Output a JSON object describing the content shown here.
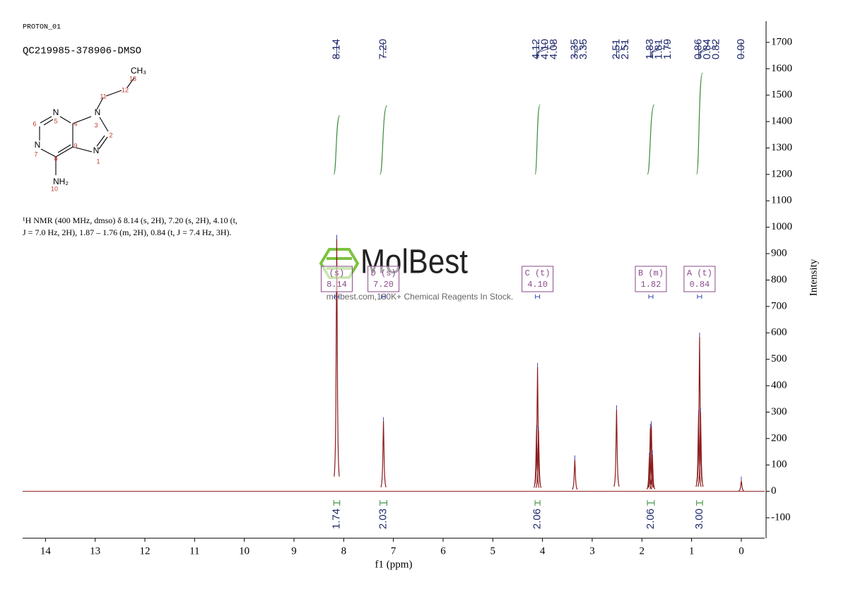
{
  "header": {
    "experiment": "PROTON_01",
    "sample": "QC219985-378906-DMSO"
  },
  "structure": {
    "atoms": [
      "N",
      "N",
      "N",
      "N",
      "NH₂",
      "CH₃"
    ],
    "numbers": [
      5,
      4,
      3,
      2,
      6,
      7,
      9,
      1,
      8,
      10,
      11,
      12,
      13
    ]
  },
  "description": [
    "¹H NMR (400 MHz, dmso) δ 8.14 (s, 2H), 7.20 (s, 2H), 4.10 (t,",
    "J = 7.0 Hz, 2H), 1.87 – 1.76 (m, 2H), 0.84 (t, J = 7.4 Hz, 3H)."
  ],
  "watermark": {
    "brand": "MolBest",
    "tagline": "molbest.com,180K+ Chemical Reagents In Stock."
  },
  "chart_data": {
    "type": "nmr",
    "xlabel": "f1 (ppm)",
    "ylabel": "Intensity",
    "xlim": [
      14.46,
      -0.47
    ],
    "xticks": [
      14,
      13,
      12,
      11,
      10,
      9,
      8,
      7,
      6,
      5,
      4,
      3,
      2,
      1,
      0
    ],
    "ylim": [
      -172,
      1780
    ],
    "yticks": [
      -100,
      0,
      100,
      200,
      300,
      400,
      500,
      600,
      700,
      800,
      900,
      1000,
      1100,
      1200,
      1300,
      1400,
      1500,
      1600,
      1700
    ],
    "color": "#8b1a1a",
    "peaks": [
      {
        "shift": 8.14,
        "height": 955
      },
      {
        "shift": 7.2,
        "height": 265
      },
      {
        "shift": 4.12,
        "height": 235
      },
      {
        "shift": 4.1,
        "height": 470
      },
      {
        "shift": 4.08,
        "height": 230
      },
      {
        "shift": 3.35,
        "height": 120
      },
      {
        "shift": 2.51,
        "height": 310
      },
      {
        "shift": 1.85,
        "height": 130
      },
      {
        "shift": 1.83,
        "height": 240
      },
      {
        "shift": 1.81,
        "height": 250
      },
      {
        "shift": 1.79,
        "height": 140
      },
      {
        "shift": 0.86,
        "height": 290
      },
      {
        "shift": 0.84,
        "height": 585
      },
      {
        "shift": 0.82,
        "height": 300
      },
      {
        "shift": 0.0,
        "height": 40
      }
    ],
    "peak_labels": [
      8.14,
      {
        "value": 7.2,
        "label": "7.20"
      },
      4.12,
      {
        "value": 4.1,
        "label": "4.10"
      },
      4.08,
      3.35,
      3.35,
      2.51,
      2.51,
      1.83,
      1.81,
      1.79,
      0.86,
      0.84,
      0.82,
      {
        "value": 0,
        "label": "0.00"
      }
    ],
    "label_color": "#1f2a6b",
    "integral_color": "#3c8c3c",
    "integrals": [
      {
        "from": 8.2,
        "to": 8.08,
        "value": 1.74
      },
      {
        "from": 7.27,
        "to": 7.13,
        "value": 2.03
      },
      {
        "from": 4.15,
        "to": 4.05,
        "value": 2.06
      },
      {
        "from": 1.89,
        "to": 1.75,
        "value": 2.06
      },
      {
        "from": 0.9,
        "to": 0.78,
        "value": {
          "value": 3,
          "label": "3.00"
        }
      }
    ],
    "multiplet_color": "#8a4a8a",
    "multiplets": [
      {
        "label": "(s)",
        "shift": 8.14
      },
      {
        "label": "D (s)",
        "shift": {
          "value": 7.2,
          "label": "7.20"
        }
      },
      {
        "label": "C (t)",
        "shift": {
          "value": 4.1,
          "label": "4.10"
        }
      },
      {
        "label": "B (m)",
        "shift": 1.82
      },
      {
        "label": "A (t)",
        "shift": 0.84
      }
    ]
  }
}
